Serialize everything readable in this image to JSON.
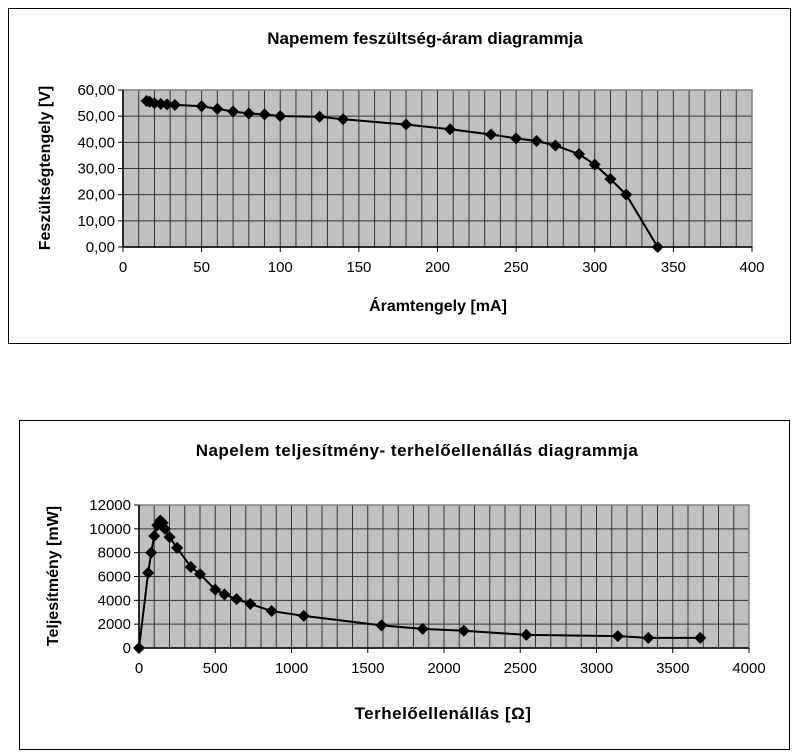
{
  "chart_data": [
    {
      "type": "line",
      "title": "Napemem feszültség-áram diagrammja",
      "xlabel": "Áramtengely [mA]",
      "ylabel": "Feszültségtengely [V]",
      "xlim": [
        0,
        400
      ],
      "ylim": [
        0,
        60
      ],
      "xticks": [
        "0",
        "50",
        "100",
        "150",
        "200",
        "250",
        "300",
        "350",
        "400"
      ],
      "yticks": [
        "0,00",
        "10,00",
        "20,00",
        "30,00",
        "40,00",
        "50,00",
        "60,00"
      ],
      "grid": true,
      "x_minor_grid_step": 10,
      "plot_background": "#c0c0c0",
      "marker": "diamond",
      "series": [
        {
          "x": [
            15,
            17,
            20,
            24,
            28,
            33,
            50,
            60,
            70,
            80,
            90,
            100,
            125,
            140,
            180,
            208,
            234,
            250,
            263,
            275,
            290,
            300,
            310,
            320,
            340
          ],
          "y": [
            55.8,
            55.5,
            55.0,
            54.7,
            54.5,
            54.3,
            53.8,
            52.8,
            51.8,
            51.0,
            50.7,
            50.0,
            49.8,
            48.8,
            46.8,
            45.0,
            43.0,
            41.5,
            40.5,
            38.8,
            35.5,
            31.5,
            26.0,
            20.0,
            0.0
          ]
        }
      ]
    },
    {
      "type": "line",
      "title": "Napelem teljesítmény- terhelőellenállás diagrammja",
      "xlabel": "Terhelőellenállás [Ω]",
      "ylabel": "Teljesítmény [mW]",
      "xlim": [
        0,
        4000
      ],
      "ylim": [
        0,
        12000
      ],
      "xticks": [
        "0",
        "500",
        "1000",
        "1500",
        "2000",
        "2500",
        "3000",
        "3500",
        "4000"
      ],
      "yticks": [
        "0",
        "2000",
        "4000",
        "6000",
        "8000",
        "10000",
        "12000"
      ],
      "grid": true,
      "x_minor_grid_step": 100,
      "plot_background": "#c0c0c0",
      "marker": "diamond",
      "series": [
        {
          "x": [
            0,
            60,
            80,
            100,
            120,
            140,
            155,
            170,
            200,
            250,
            340,
            400,
            500,
            560,
            640,
            730,
            870,
            1080,
            1590,
            1860,
            2130,
            2540,
            3140,
            3340,
            3680
          ],
          "y": [
            0,
            6300,
            8000,
            9400,
            10300,
            10700,
            10500,
            10000,
            9300,
            8400,
            6800,
            6200,
            4900,
            4500,
            4100,
            3700,
            3100,
            2700,
            1900,
            1600,
            1450,
            1100,
            1000,
            850,
            850
          ]
        }
      ]
    }
  ]
}
